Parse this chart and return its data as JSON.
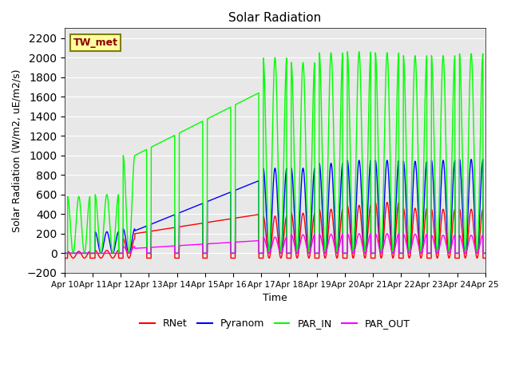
{
  "title": "Solar Radiation",
  "ylabel": "Solar Radiation (W/m2, uE/m2/s)",
  "xlabel": "Time",
  "ylim": [
    -200,
    2300
  ],
  "yticks": [
    -200,
    0,
    200,
    400,
    600,
    800,
    1000,
    1200,
    1400,
    1600,
    1800,
    2000,
    2200
  ],
  "site_label": "TW_met",
  "colors": {
    "RNet": "red",
    "Pyranom": "blue",
    "PAR_IN": "lime",
    "PAR_OUT": "magenta"
  },
  "background_color": "#e8e8e8",
  "days": [
    "Apr 10",
    "Apr 11",
    "Apr 12",
    "Apr 13",
    "Apr 14",
    "Apr 15",
    "Apr 16",
    "Apr 17",
    "Apr 18",
    "Apr 19",
    "Apr 20",
    "Apr 21",
    "Apr 22",
    "Apr 23",
    "Apr 24",
    "Apr 25"
  ]
}
